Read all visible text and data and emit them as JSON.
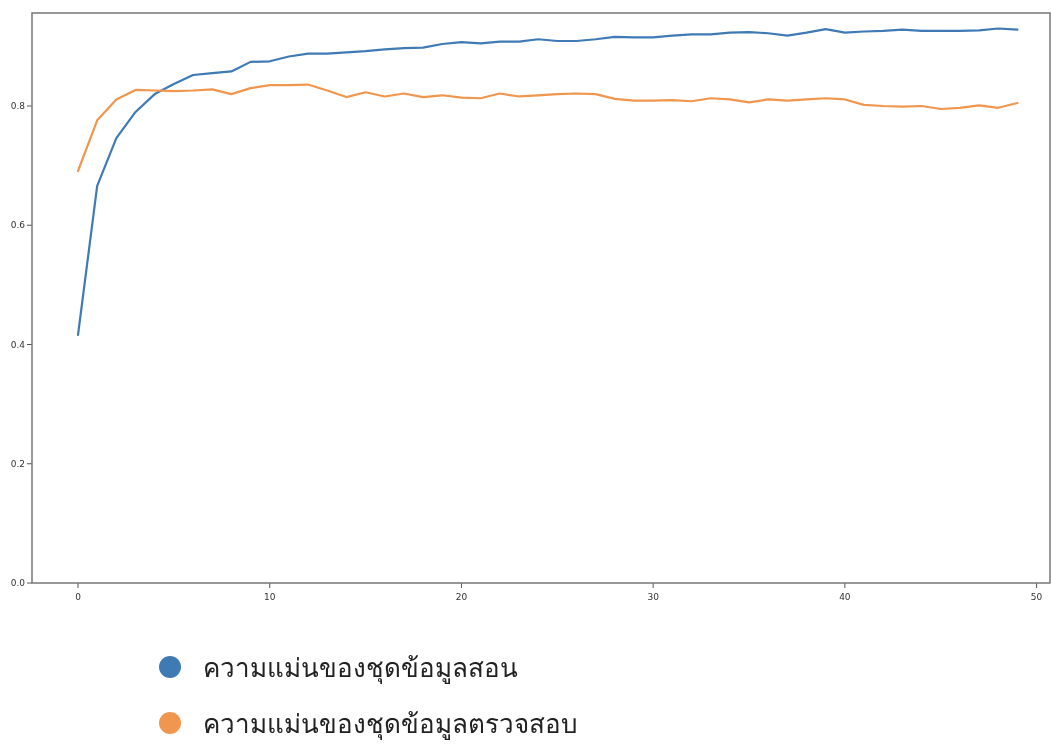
{
  "chart_data": {
    "type": "line",
    "x": [
      0,
      1,
      2,
      3,
      4,
      5,
      6,
      7,
      8,
      9,
      10,
      11,
      12,
      13,
      14,
      15,
      16,
      17,
      18,
      19,
      20,
      21,
      22,
      23,
      24,
      25,
      26,
      27,
      28,
      29,
      30,
      31,
      32,
      33,
      34,
      35,
      36,
      37,
      38,
      39,
      40,
      41,
      42,
      43,
      44,
      45,
      46,
      47,
      48,
      49
    ],
    "series": [
      {
        "name": "ความแม่นของชุดข้อมูลสอน",
        "color": "#3f7ab5",
        "values": [
          0.416,
          0.666,
          0.746,
          0.79,
          0.82,
          0.837,
          0.852,
          0.855,
          0.858,
          0.874,
          0.875,
          0.883,
          0.888,
          0.888,
          0.89,
          0.892,
          0.895,
          0.897,
          0.898,
          0.904,
          0.907,
          0.905,
          0.908,
          0.908,
          0.912,
          0.909,
          0.909,
          0.912,
          0.916,
          0.915,
          0.915,
          0.918,
          0.92,
          0.92,
          0.923,
          0.924,
          0.922,
          0.918,
          0.923,
          0.929,
          0.923,
          0.925,
          0.926,
          0.928,
          0.926,
          0.926,
          0.926,
          0.927,
          0.93,
          0.928
        ]
      },
      {
        "name": "ความแม่นของชุดข้อมูลตรวจสอบ",
        "color": "#f0964e",
        "values": [
          0.691,
          0.776,
          0.811,
          0.827,
          0.826,
          0.825,
          0.826,
          0.828,
          0.82,
          0.83,
          0.835,
          0.835,
          0.836,
          0.826,
          0.815,
          0.823,
          0.816,
          0.821,
          0.815,
          0.818,
          0.814,
          0.813,
          0.821,
          0.816,
          0.818,
          0.82,
          0.821,
          0.82,
          0.812,
          0.809,
          0.809,
          0.81,
          0.808,
          0.813,
          0.811,
          0.806,
          0.811,
          0.809,
          0.811,
          0.813,
          0.811,
          0.802,
          0.8,
          0.799,
          0.8,
          0.795,
          0.797,
          0.801,
          0.797,
          0.805
        ]
      }
    ],
    "xlim": [
      -2.4,
      50.7
    ],
    "ylim": [
      0,
      0.956
    ],
    "xticks": [
      0,
      10,
      20,
      30,
      40,
      50
    ],
    "yticks": [
      {
        "value": 0,
        "label": "0.0"
      },
      0.2,
      0.4,
      0.6,
      0.8
    ],
    "legend": "bottom",
    "marker": "none",
    "line_style": "solid",
    "grid": false
  }
}
